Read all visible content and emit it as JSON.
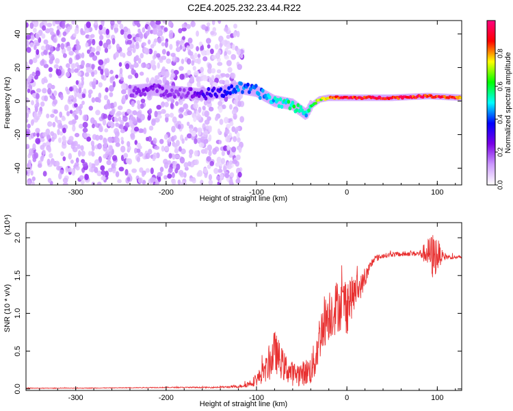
{
  "title": "C2E4.2025.232.23.44.R22",
  "chart_data": [
    {
      "type": "heatmap",
      "name": "spectrogram",
      "xlabel": "Height of straight line (km)",
      "ylabel": "Frequency (Hz)",
      "xlim": [
        -355,
        127
      ],
      "ylim": [
        -50,
        48
      ],
      "xticks": [
        -300,
        -200,
        -100,
        0,
        100
      ],
      "xtick_labels": [
        "-300",
        "-200",
        "-100",
        "0",
        "100"
      ],
      "yticks": [
        -40,
        -20,
        0,
        20,
        40
      ],
      "ytick_labels": [
        "-40",
        "-20",
        "0",
        "20",
        "40"
      ],
      "colorbar": {
        "label": "Normalized spectral amplitude",
        "range": [
          0,
          1
        ],
        "ticks": [
          0.0,
          0.2,
          0.4,
          0.6,
          0.8
        ],
        "tick_labels": [
          "0.0",
          "0.2",
          "0.4",
          "0.6",
          "0.8"
        ],
        "colors": [
          "#ffffff",
          "#cc99ff",
          "#7a00e6",
          "#0000ff",
          "#00ffff",
          "#00ff00",
          "#ffff00",
          "#ff0000",
          "#ff0080"
        ]
      },
      "ridge": {
        "x": [
          -240,
          -220,
          -200,
          -180,
          -160,
          -140,
          -120,
          -100,
          -80,
          -60,
          -50,
          -45,
          -40,
          -30,
          -20,
          0,
          20,
          50,
          90,
          127
        ],
        "freq": [
          6,
          7,
          6,
          5,
          4,
          5,
          8,
          6,
          0,
          -2,
          -6,
          -8,
          -3,
          1,
          2,
          2,
          2,
          2,
          3,
          2
        ],
        "amplitude": [
          0.2,
          0.25,
          0.22,
          0.2,
          0.3,
          0.35,
          0.45,
          0.45,
          0.5,
          0.6,
          0.55,
          0.5,
          0.6,
          0.75,
          0.85,
          0.95,
          0.95,
          0.95,
          0.95,
          0.9
        ]
      },
      "noise_region_x": [
        -355,
        -125
      ]
    },
    {
      "type": "line",
      "name": "snr",
      "xlabel": "Height of straight line (km)",
      "ylabel": "SNR (10 * v/v)",
      "y_multiplier": "(x10⁴)",
      "xlim": [
        -355,
        127
      ],
      "ylim": [
        -0.02,
        2.2
      ],
      "xticks": [
        -300,
        -200,
        -100,
        0,
        100
      ],
      "xtick_labels": [
        "-300",
        "-200",
        "-100",
        "0",
        "100"
      ],
      "yticks": [
        0.0,
        0.5,
        1.0,
        1.5,
        2.0
      ],
      "ytick_labels": [
        "0.0",
        "0.5",
        "1.0",
        "1.5",
        "2.0"
      ],
      "color": "#e83030",
      "series": [
        {
          "name": "SNR",
          "x": [
            -355,
            -300,
            -250,
            -200,
            -150,
            -120,
            -110,
            -100,
            -90,
            -85,
            -80,
            -75,
            -70,
            -60,
            -50,
            -40,
            -35,
            -30,
            -25,
            -20,
            -15,
            -10,
            -5,
            0,
            5,
            10,
            15,
            20,
            25,
            30,
            40,
            50,
            60,
            70,
            80,
            90,
            95,
            100,
            105,
            110,
            115,
            127
          ],
          "y": [
            0.01,
            0.01,
            0.015,
            0.02,
            0.02,
            0.03,
            0.06,
            0.12,
            0.25,
            0.35,
            0.5,
            0.4,
            0.3,
            0.2,
            0.2,
            0.25,
            0.4,
            0.7,
            0.9,
            1.0,
            1.05,
            1.1,
            1.1,
            1.15,
            1.2,
            1.3,
            1.35,
            1.45,
            1.6,
            1.72,
            1.76,
            1.78,
            1.78,
            1.79,
            1.79,
            1.8,
            1.75,
            1.78,
            1.76,
            1.75,
            1.74,
            1.74
          ],
          "noise_amplitude": [
            0.005,
            0.005,
            0.005,
            0.008,
            0.01,
            0.02,
            0.05,
            0.1,
            0.2,
            0.3,
            0.35,
            0.3,
            0.25,
            0.2,
            0.2,
            0.25,
            0.35,
            0.4,
            0.45,
            0.45,
            0.45,
            0.45,
            0.4,
            0.55,
            0.35,
            0.3,
            0.2,
            0.15,
            0.1,
            0.06,
            0.04,
            0.04,
            0.04,
            0.04,
            0.05,
            0.25,
            0.4,
            0.3,
            0.1,
            0.05,
            0.03,
            0.03
          ]
        }
      ]
    }
  ]
}
